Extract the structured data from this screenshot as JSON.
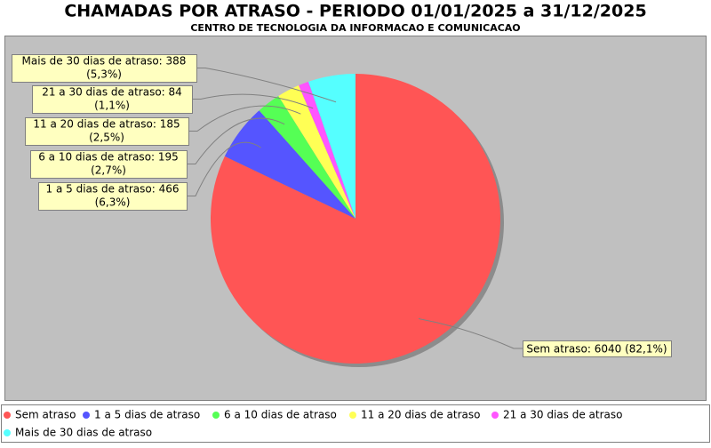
{
  "chart_data": {
    "type": "pie",
    "title": "CHAMADAS POR ATRASO - PERIODO 01/01/2025 a 31/12/2025",
    "subtitle": "CENTRO DE TECNOLOGIA DA INFORMACAO E COMUNICACAO",
    "categories": [
      "Sem atraso",
      "1 a 5 dias de atraso",
      "6 a 10 dias de atraso",
      "11 a 20 dias de atraso",
      "21 a 30 dias de atraso",
      "Mais de 30 dias de atraso"
    ],
    "values": [
      6040,
      466,
      195,
      185,
      84,
      388
    ],
    "value_labels": [
      [
        "Sem atraso: 6040 (82,1%)"
      ],
      [
        "1 a 5 dias de atraso: 466",
        "(6,3%)"
      ],
      [
        "6 a 10 dias de atraso: 195",
        "(2,7%)"
      ],
      [
        "11 a 20 dias de atraso: 185",
        "(2,5%)"
      ],
      [
        "21 a 30 dias de atraso: 84",
        "(1,1%)"
      ],
      [
        "Mais de 30 dias de atraso: 388",
        "(5,3%)"
      ]
    ],
    "colors": [
      "#ff5555",
      "#5555ff",
      "#55ff55",
      "#ffff55",
      "#ff55ff",
      "#55ffff"
    ],
    "legend": "bottom"
  }
}
